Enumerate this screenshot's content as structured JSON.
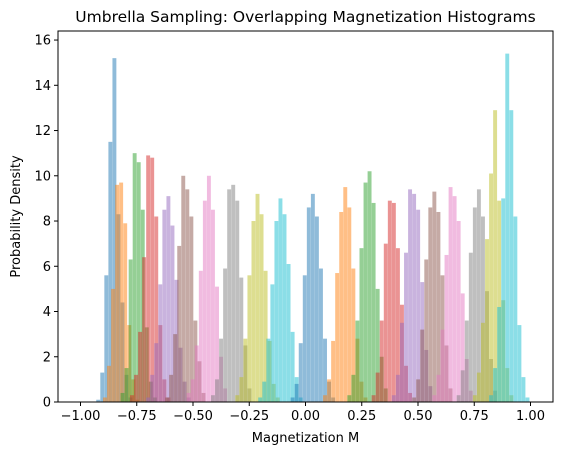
{
  "chart_data": {
    "type": "histogram",
    "title": "Umbrella Sampling: Overlapping Magnetization Histograms",
    "xlabel": "Magnetization M",
    "ylabel": "Probability Density",
    "xlim": [
      -1.1,
      1.1
    ],
    "ylim": [
      0,
      16.4
    ],
    "xticks": [
      -1.0,
      -0.75,
      -0.5,
      -0.25,
      0.0,
      0.25,
      0.5,
      0.75,
      1.0
    ],
    "xtick_labels": [
      "−1.00",
      "−0.75",
      "−0.50",
      "−0.25",
      "0.00",
      "0.25",
      "0.50",
      "0.75",
      "1.00"
    ],
    "yticks": [
      0,
      2,
      4,
      6,
      8,
      10,
      12,
      14,
      16
    ],
    "ytick_labels": [
      "0",
      "2",
      "4",
      "6",
      "8",
      "10",
      "12",
      "14",
      "16"
    ],
    "bin_width": 0.0174,
    "alpha": 0.5,
    "grid": false,
    "series": [
      {
        "color": "#1f77b4",
        "bins": [
          [
            -0.93,
            0.1
          ],
          [
            -0.912,
            1.3
          ],
          [
            -0.894,
            5.6
          ],
          [
            -0.876,
            11.5
          ],
          [
            -0.858,
            15.2
          ],
          [
            -0.84,
            8.3
          ],
          [
            -0.822,
            4.4
          ],
          [
            -0.804,
            1.2
          ],
          [
            -0.786,
            0.2
          ]
        ]
      },
      {
        "color": "#ff7f0e",
        "bins": [
          [
            -0.9,
            0.2
          ],
          [
            -0.882,
            1.6
          ],
          [
            -0.864,
            5.0
          ],
          [
            -0.846,
            9.6
          ],
          [
            -0.828,
            9.7
          ],
          [
            -0.81,
            7.9
          ],
          [
            -0.792,
            3.4
          ],
          [
            -0.774,
            1.0
          ],
          [
            -0.756,
            0.1
          ]
        ]
      },
      {
        "color": "#2ca02c",
        "bins": [
          [
            -0.822,
            0.4
          ],
          [
            -0.804,
            1.5
          ],
          [
            -0.786,
            6.3
          ],
          [
            -0.768,
            11.0
          ],
          [
            -0.75,
            10.6
          ],
          [
            -0.732,
            8.5
          ],
          [
            -0.714,
            3.3
          ],
          [
            -0.696,
            0.9
          ],
          [
            -0.678,
            0.2
          ]
        ]
      },
      {
        "color": "#d62728",
        "bins": [
          [
            -0.78,
            0.3
          ],
          [
            -0.762,
            1.2
          ],
          [
            -0.744,
            3.1
          ],
          [
            -0.726,
            6.4
          ],
          [
            -0.708,
            10.9
          ],
          [
            -0.69,
            10.8
          ],
          [
            -0.672,
            8.2
          ],
          [
            -0.654,
            3.4
          ],
          [
            -0.636,
            1.0
          ],
          [
            -0.618,
            0.2
          ]
        ]
      },
      {
        "color": "#9467bd",
        "bins": [
          [
            -0.708,
            0.2
          ],
          [
            -0.69,
            1.2
          ],
          [
            -0.672,
            2.6
          ],
          [
            -0.654,
            5.2
          ],
          [
            -0.636,
            8.5
          ],
          [
            -0.618,
            9.1
          ],
          [
            -0.6,
            7.8
          ],
          [
            -0.582,
            5.4
          ],
          [
            -0.564,
            2.4
          ],
          [
            -0.546,
            0.9
          ],
          [
            -0.528,
            0.2
          ]
        ]
      },
      {
        "color": "#8c564b",
        "bins": [
          [
            -0.624,
            0.2
          ],
          [
            -0.606,
            1.2
          ],
          [
            -0.588,
            3.0
          ],
          [
            -0.57,
            6.9
          ],
          [
            -0.552,
            10.0
          ],
          [
            -0.534,
            9.4
          ],
          [
            -0.516,
            8.2
          ],
          [
            -0.498,
            3.6
          ],
          [
            -0.48,
            1.8
          ],
          [
            -0.462,
            0.4
          ]
        ]
      },
      {
        "color": "#e377c2",
        "bins": [
          [
            -0.528,
            0.4
          ],
          [
            -0.51,
            1.0
          ],
          [
            -0.492,
            2.5
          ],
          [
            -0.474,
            5.8
          ],
          [
            -0.456,
            8.9
          ],
          [
            -0.438,
            10.0
          ],
          [
            -0.42,
            8.5
          ],
          [
            -0.402,
            5.1
          ],
          [
            -0.384,
            2.0
          ],
          [
            -0.366,
            0.6
          ]
        ]
      },
      {
        "color": "#7f7f7f",
        "bins": [
          [
            -0.42,
            0.3
          ],
          [
            -0.402,
            1.0
          ],
          [
            -0.384,
            2.8
          ],
          [
            -0.366,
            5.9
          ],
          [
            -0.348,
            9.4
          ],
          [
            -0.33,
            9.6
          ],
          [
            -0.312,
            8.9
          ],
          [
            -0.294,
            5.5
          ],
          [
            -0.276,
            2.5
          ],
          [
            -0.258,
            0.6
          ]
        ]
      },
      {
        "color": "#bcbd22",
        "bins": [
          [
            -0.312,
            0.3
          ],
          [
            -0.294,
            1.1
          ],
          [
            -0.276,
            2.8
          ],
          [
            -0.258,
            5.6
          ],
          [
            -0.24,
            8.0
          ],
          [
            -0.222,
            9.2
          ],
          [
            -0.204,
            8.3
          ],
          [
            -0.186,
            5.8
          ],
          [
            -0.168,
            2.7
          ],
          [
            -0.15,
            0.8
          ],
          [
            -0.132,
            0.2
          ]
        ]
      },
      {
        "color": "#17becf",
        "bins": [
          [
            -0.21,
            0.2
          ],
          [
            -0.192,
            0.9
          ],
          [
            -0.174,
            2.8
          ],
          [
            -0.156,
            5.2
          ],
          [
            -0.138,
            8.0
          ],
          [
            -0.12,
            9.0
          ],
          [
            -0.102,
            8.3
          ],
          [
            -0.084,
            6.1
          ],
          [
            -0.066,
            3.1
          ],
          [
            -0.048,
            1.1
          ],
          [
            -0.03,
            0.2
          ]
        ]
      },
      {
        "color": "#1f77b4",
        "bins": [
          [
            -0.066,
            0.2
          ],
          [
            -0.048,
            0.8
          ],
          [
            -0.03,
            2.6
          ],
          [
            -0.012,
            5.6
          ],
          [
            0.006,
            8.6
          ],
          [
            0.024,
            9.2
          ],
          [
            0.042,
            8.2
          ],
          [
            0.06,
            5.9
          ],
          [
            0.078,
            2.8
          ],
          [
            0.096,
            0.9
          ],
          [
            0.114,
            0.2
          ]
        ]
      },
      {
        "color": "#ff7f0e",
        "bins": [
          [
            0.078,
            0.3
          ],
          [
            0.096,
            1.0
          ],
          [
            0.114,
            2.7
          ],
          [
            0.132,
            5.7
          ],
          [
            0.15,
            8.4
          ],
          [
            0.168,
            9.5
          ],
          [
            0.186,
            8.6
          ],
          [
            0.204,
            5.9
          ],
          [
            0.222,
            2.8
          ],
          [
            0.24,
            0.9
          ],
          [
            0.258,
            0.2
          ]
        ]
      },
      {
        "color": "#2ca02c",
        "bins": [
          [
            0.186,
            0.3
          ],
          [
            0.204,
            1.2
          ],
          [
            0.222,
            3.6
          ],
          [
            0.24,
            6.8
          ],
          [
            0.258,
            9.7
          ],
          [
            0.276,
            10.2
          ],
          [
            0.294,
            8.8
          ],
          [
            0.312,
            5.0
          ],
          [
            0.33,
            2.0
          ],
          [
            0.348,
            0.6
          ]
        ]
      },
      {
        "color": "#d62728",
        "bins": [
          [
            0.294,
            0.3
          ],
          [
            0.312,
            1.3
          ],
          [
            0.33,
            3.6
          ],
          [
            0.348,
            7.0
          ],
          [
            0.366,
            8.9
          ],
          [
            0.384,
            8.8
          ],
          [
            0.402,
            6.8
          ],
          [
            0.42,
            4.3
          ],
          [
            0.438,
            1.6
          ],
          [
            0.456,
            0.4
          ]
        ]
      },
      {
        "color": "#9467bd",
        "bins": [
          [
            0.384,
            0.3
          ],
          [
            0.402,
            1.2
          ],
          [
            0.42,
            3.5
          ],
          [
            0.438,
            6.6
          ],
          [
            0.456,
            9.4
          ],
          [
            0.474,
            9.2
          ],
          [
            0.492,
            8.5
          ],
          [
            0.51,
            5.3
          ],
          [
            0.528,
            2.3
          ],
          [
            0.546,
            0.7
          ]
        ]
      },
      {
        "color": "#8c564b",
        "bins": [
          [
            0.474,
            0.2
          ],
          [
            0.492,
            1.0
          ],
          [
            0.51,
            3.2
          ],
          [
            0.528,
            6.3
          ],
          [
            0.546,
            8.6
          ],
          [
            0.564,
            9.3
          ],
          [
            0.582,
            8.4
          ],
          [
            0.6,
            5.6
          ],
          [
            0.618,
            2.5
          ],
          [
            0.636,
            0.6
          ]
        ]
      },
      {
        "color": "#e377c2",
        "bins": [
          [
            0.564,
            0.3
          ],
          [
            0.582,
            1.2
          ],
          [
            0.6,
            3.2
          ],
          [
            0.618,
            6.5
          ],
          [
            0.636,
            9.5
          ],
          [
            0.654,
            9.1
          ],
          [
            0.672,
            8.0
          ],
          [
            0.69,
            4.8
          ],
          [
            0.708,
            1.9
          ],
          [
            0.726,
            0.5
          ]
        ]
      },
      {
        "color": "#7f7f7f",
        "bins": [
          [
            0.672,
            0.3
          ],
          [
            0.69,
            1.4
          ],
          [
            0.708,
            3.6
          ],
          [
            0.726,
            6.6
          ],
          [
            0.744,
            8.6
          ],
          [
            0.762,
            9.4
          ],
          [
            0.78,
            8.2
          ],
          [
            0.798,
            4.9
          ],
          [
            0.816,
            1.9
          ],
          [
            0.834,
            0.5
          ]
        ]
      },
      {
        "color": "#bcbd22",
        "bins": [
          [
            0.744,
            0.3
          ],
          [
            0.762,
            1.3
          ],
          [
            0.78,
            3.5
          ],
          [
            0.798,
            7.2
          ],
          [
            0.816,
            10.1
          ],
          [
            0.834,
            12.9
          ],
          [
            0.852,
            8.9
          ],
          [
            0.87,
            4.5
          ],
          [
            0.888,
            1.5
          ],
          [
            0.906,
            0.3
          ]
        ]
      },
      {
        "color": "#17becf",
        "bins": [
          [
            0.816,
            0.3
          ],
          [
            0.834,
            1.5
          ],
          [
            0.852,
            4.2
          ],
          [
            0.87,
            9.0
          ],
          [
            0.888,
            15.4
          ],
          [
            0.906,
            12.9
          ],
          [
            0.924,
            8.2
          ],
          [
            0.942,
            3.4
          ],
          [
            0.96,
            1.1
          ],
          [
            0.978,
            0.2
          ]
        ]
      }
    ]
  }
}
